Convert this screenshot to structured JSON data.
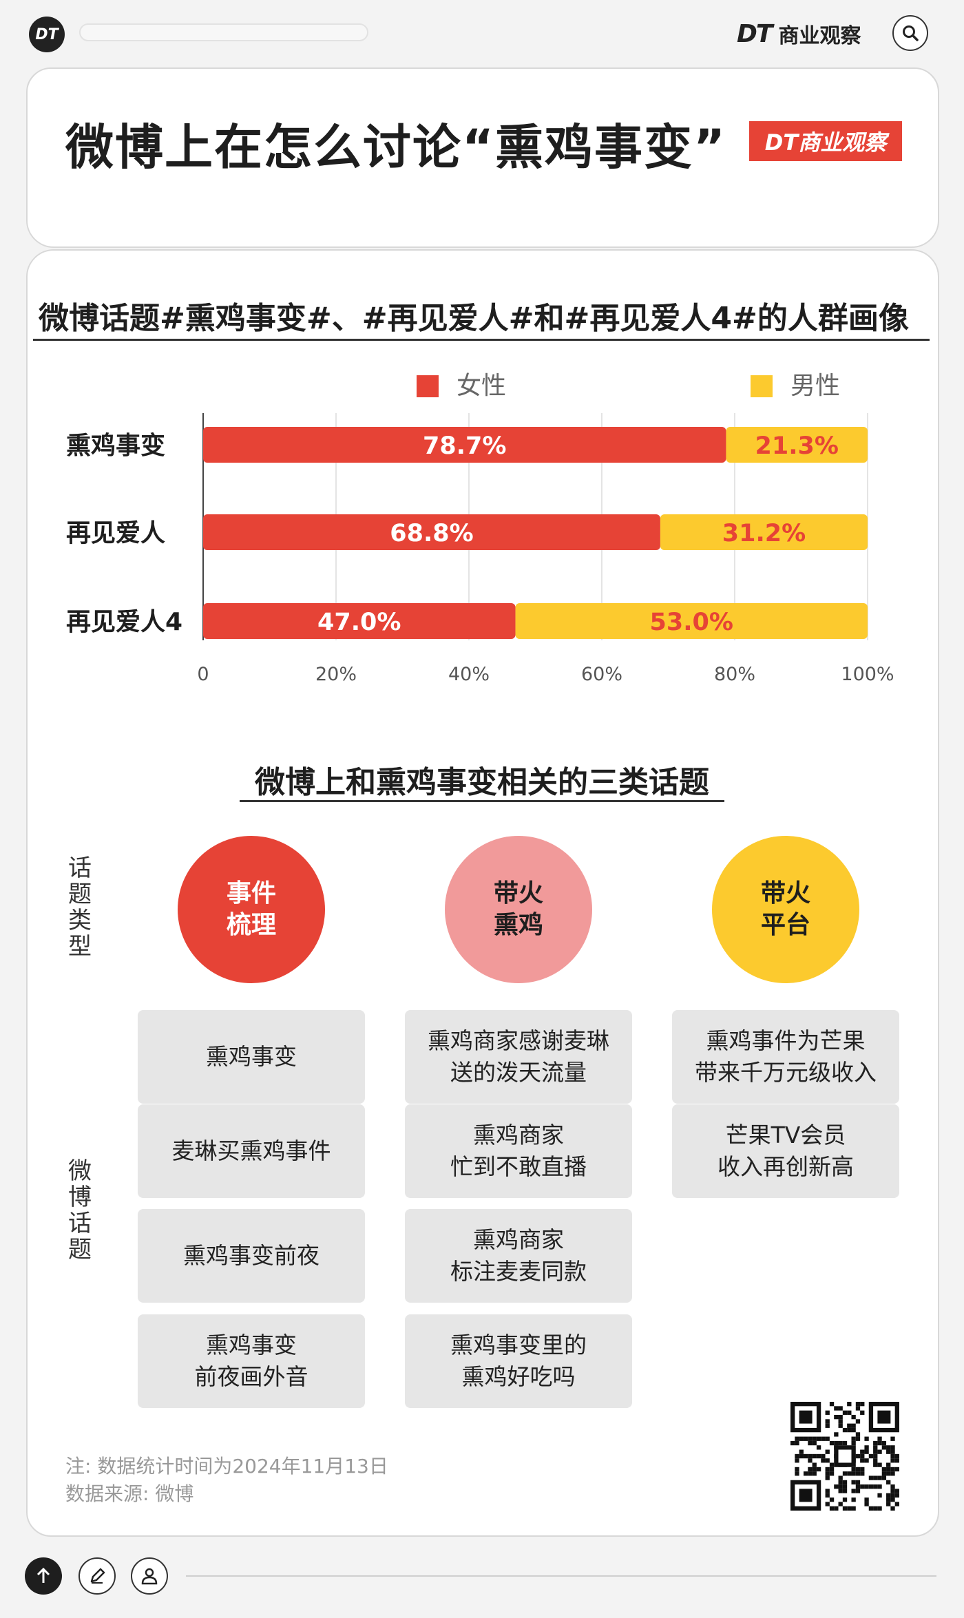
{
  "topbar": {
    "logo_text": "DT",
    "brand_dt": "DT",
    "brand_name": "商业观察",
    "search_icon": "search-icon"
  },
  "header": {
    "headline": "微博上在怎么讨论“熏鸡事变”",
    "badge": "DT商业观察"
  },
  "section1": {
    "title": "微博话题#熏鸡事变#、#再见爱人#和#再见爱人4#的人群画像"
  },
  "chart_data": {
    "type": "bar",
    "orientation": "horizontal-stacked-100",
    "categories": [
      "熏鸡事变",
      "再见爱人",
      "再见爱人4"
    ],
    "series": [
      {
        "name": "女性",
        "color": "#e64336",
        "values": [
          78.7,
          68.8,
          47.0
        ],
        "labels": [
          "78.7%",
          "68.8%",
          "47.0%"
        ]
      },
      {
        "name": "男性",
        "color": "#fcca2e",
        "values": [
          21.3,
          31.2,
          53.0
        ],
        "labels": [
          "21.3%",
          "31.2%",
          "53.0%"
        ]
      }
    ],
    "xticks": [
      0,
      20,
      40,
      60,
      80,
      100
    ],
    "xtick_labels": [
      "0",
      "20%",
      "40%",
      "60%",
      "80%",
      "100%"
    ],
    "xlim": [
      0,
      100
    ],
    "grid": true,
    "legend": "top"
  },
  "section2": {
    "title": "微博上和熏鸡事变相关的三类话题",
    "type_label": "话题类型",
    "topic_label": "微博话题",
    "columns": [
      {
        "label": "事件\n梳理",
        "color": "#e64336",
        "text_color": "#ffffff",
        "topics": [
          "熏鸡事变",
          "麦琳买熏鸡事件",
          "熏鸡事变前夜",
          "熏鸡事变\n前夜画外音"
        ]
      },
      {
        "label": "带火\n熏鸡",
        "color": "#f19a9a",
        "text_color": "#1e1e1e",
        "topics": [
          "熏鸡商家感谢麦琳\n送的泼天流量",
          "熏鸡商家\n忙到不敢直播",
          "熏鸡商家\n标注麦麦同款",
          "熏鸡事变里的\n熏鸡好吃吗"
        ]
      },
      {
        "label": "带火\n平台",
        "color": "#fcca2e",
        "text_color": "#1e1e1e",
        "topics": [
          "熏鸡事件为芒果\n带来千万元级收入",
          "芒果TV会员\n收入再创新高"
        ]
      }
    ]
  },
  "notes": {
    "note": "注: 数据统计时间为2024年11月13日",
    "source": "数据来源: 微博"
  }
}
